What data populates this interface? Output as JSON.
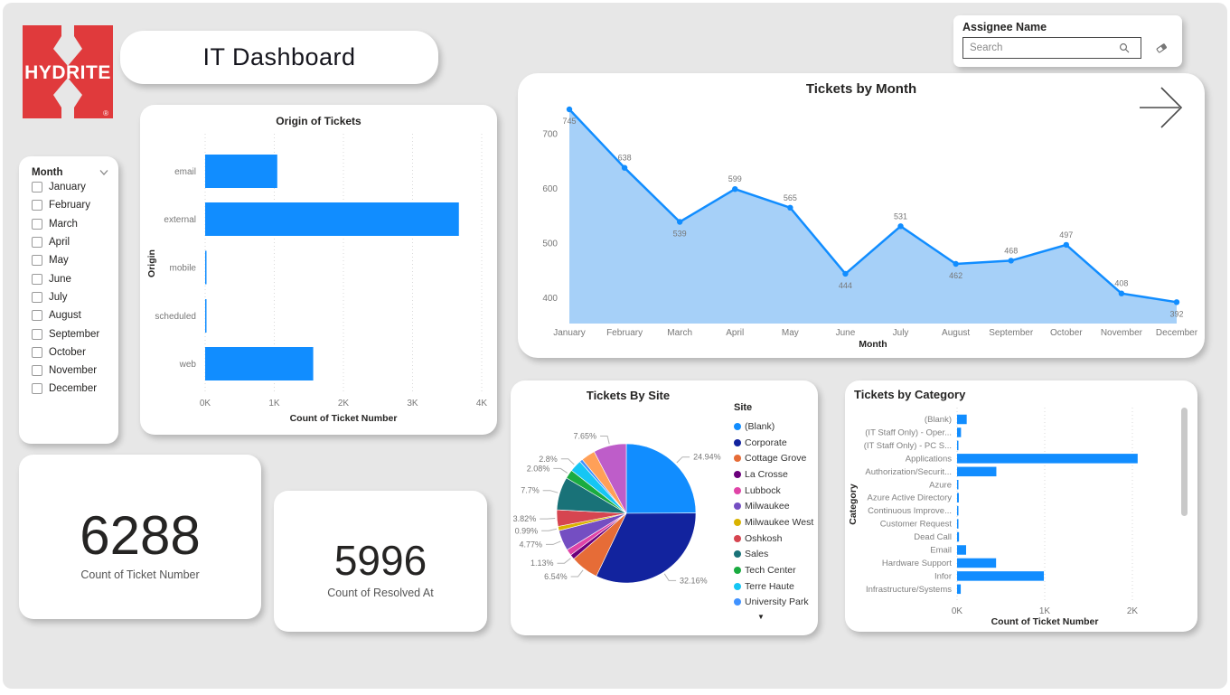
{
  "page": {
    "background": "#e7e7e7",
    "accent": "#118DFF"
  },
  "logo": {
    "brand": "HYDRITE",
    "registered": "®",
    "brand_color": "#E03A3C"
  },
  "header": {
    "title": "IT Dashboard"
  },
  "assignee_filter": {
    "label": "Assignee Name",
    "search_placeholder": "Search",
    "icons": {
      "search": "magnifier-icon",
      "clear": "eraser-icon"
    }
  },
  "month_filter": {
    "label": "Month",
    "items": [
      "January",
      "February",
      "March",
      "April",
      "May",
      "June",
      "July",
      "August",
      "September",
      "October",
      "November",
      "December"
    ]
  },
  "kpis": [
    {
      "value": "6288",
      "label": "Count of Ticket Number"
    },
    {
      "value": "5996",
      "label": "Count of Resolved At"
    }
  ],
  "chart_data": [
    {
      "id": "origin_of_tickets",
      "type": "bar",
      "orientation": "horizontal",
      "title": "Origin of Tickets",
      "categories": [
        "email",
        "external",
        "mobile",
        "scheduled",
        "web"
      ],
      "values": [
        1043,
        3670,
        6,
        6,
        1563
      ],
      "xlabel": "Count of Ticket Number",
      "ylabel": "Origin",
      "x_ticks": [
        "0K",
        "1K",
        "2K",
        "3K",
        "4K"
      ],
      "xlim": [
        0,
        4000
      ],
      "bar_color": "#118DFF",
      "grid": true
    },
    {
      "id": "tickets_by_month",
      "type": "area",
      "title": "Tickets by Month",
      "categories": [
        "January",
        "February",
        "March",
        "April",
        "May",
        "June",
        "July",
        "August",
        "September",
        "October",
        "November",
        "December"
      ],
      "values": [
        745,
        638,
        539,
        599,
        565,
        444,
        531,
        462,
        468,
        497,
        408,
        392
      ],
      "data_labels": [
        "745",
        "638",
        "539",
        "599",
        "565",
        "444",
        "531",
        "462",
        "468",
        "497",
        "408",
        "392"
      ],
      "label_positions": [
        "below",
        "above",
        "below",
        "above",
        "above",
        "below",
        "above",
        "below",
        "above",
        "above",
        "above",
        "below"
      ],
      "xlabel": "Month",
      "y_ticks": [
        400,
        500,
        600,
        700
      ],
      "ylim": [
        380,
        770
      ],
      "line_color": "#118DFF",
      "fill_color": "#A6D0F8",
      "grid": false,
      "drill_icon": "right-arrow"
    },
    {
      "id": "tickets_by_site",
      "type": "pie",
      "title": "Tickets By Site",
      "legend_title": "Site",
      "legend_position": "right",
      "legend_overflow_icon": "down-triangle",
      "slices": [
        {
          "site": "(Blank)",
          "percent": 24.94,
          "color": "#118DFF",
          "callout": "24.94%"
        },
        {
          "site": "Corporate",
          "percent": 32.16,
          "color": "#12239E",
          "callout": "32.16%"
        },
        {
          "site": "Cottage Grove",
          "percent": 6.54,
          "color": "#E66C37",
          "callout": "6.54%"
        },
        {
          "site": "La Crosse",
          "percent": 1.13,
          "color": "#6B007B",
          "callout": "1.13%"
        },
        {
          "site": "Lubbock",
          "percent": 1.45,
          "color": "#E044A7",
          "callout": null
        },
        {
          "site": "Milwaukee",
          "percent": 4.77,
          "color": "#744EC2",
          "callout": "4.77%"
        },
        {
          "site": "Milwaukee West",
          "percent": 0.99,
          "color": "#D9B300",
          "callout": "0.99%"
        },
        {
          "site": "Oshkosh",
          "percent": 3.82,
          "color": "#D64550",
          "callout": "3.82%"
        },
        {
          "site": "Sales",
          "percent": 7.7,
          "color": "#197278",
          "callout": "7.7%"
        },
        {
          "site": "Tech Center",
          "percent": 2.08,
          "color": "#1AAB40",
          "callout": "2.08%"
        },
        {
          "site": "Terre Haute",
          "percent": 2.8,
          "color": "#15C6F4",
          "callout": "2.8%"
        },
        {
          "site": "University Park",
          "percent": 0.72,
          "color": "#4092FF",
          "callout": null
        },
        {
          "site": "",
          "percent": 3.25,
          "color": "#FFA058",
          "callout": null
        },
        {
          "site": "",
          "percent": 7.65,
          "color": "#BE5DC9",
          "callout": "7.65%"
        }
      ],
      "legend_visible_count": 12
    },
    {
      "id": "tickets_by_category",
      "type": "bar",
      "orientation": "horizontal",
      "title": "Tickets by Category",
      "categories": [
        "(Blank)",
        "(IT Staff Only) - Oper...",
        "(IT Staff Only) - PC S...",
        "Applications",
        "Authorization/Securit...",
        "Azure",
        "Azure Active Directory",
        "Continuous Improve...",
        "Customer Request",
        "Dead Call",
        "Email",
        "Hardware Support",
        "Infor",
        "Infrastructure/Systems"
      ],
      "values": [
        110,
        45,
        8,
        2060,
        448,
        7,
        20,
        8,
        6,
        22,
        103,
        445,
        990,
        42
      ],
      "xlabel": "Count of Ticket Number",
      "ylabel": "Category",
      "x_ticks": [
        "0K",
        "1K",
        "2K"
      ],
      "xlim": [
        0,
        2000
      ],
      "bar_color": "#118DFF",
      "grid": true,
      "scrollbar": true
    }
  ]
}
